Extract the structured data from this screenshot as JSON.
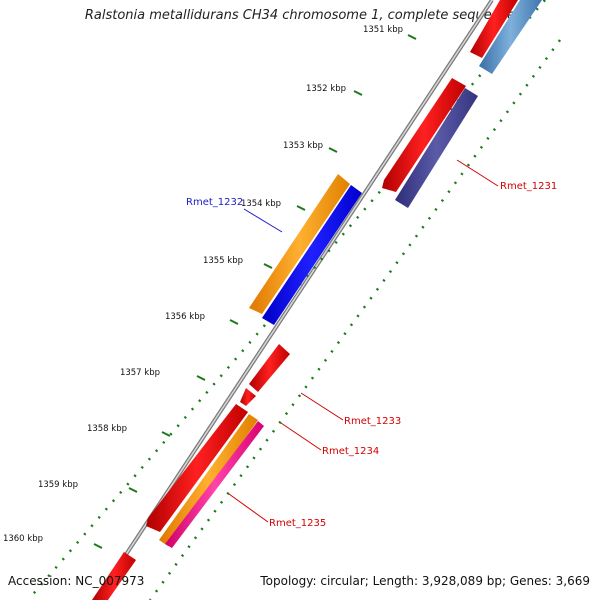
{
  "title": "Ralstonia metallidurans CH34 chromosome 1, complete sequence",
  "footer": {
    "accession": "Accession: NC_007973",
    "summary": "Topology: circular; Length: 3,928,089 bp; Genes: 3,669"
  },
  "colors": {
    "backbone": "#8a8a8a",
    "tick": "#1a7a1a",
    "label_red": "#d40000",
    "label_blue": "#1a1acc"
  },
  "kbp_ticks": [
    {
      "label": "1351 kbp"
    },
    {
      "label": "1352 kbp"
    },
    {
      "label": "1353 kbp"
    },
    {
      "label": "1354 kbp"
    },
    {
      "label": "1355 kbp"
    },
    {
      "label": "1356 kbp"
    },
    {
      "label": "1357 kbp"
    },
    {
      "label": "1358 kbp"
    },
    {
      "label": "1359 kbp"
    },
    {
      "label": "1360 kbp"
    }
  ],
  "genes": [
    {
      "label": "Rmet_1231",
      "color": "#d40000"
    },
    {
      "label": "Rmet_1232",
      "color": "#1a1acc"
    },
    {
      "label": "Rmet_1233",
      "color": "#d40000"
    },
    {
      "label": "Rmet_1234",
      "color": "#d40000"
    },
    {
      "label": "Rmet_1235",
      "color": "#d40000"
    }
  ]
}
